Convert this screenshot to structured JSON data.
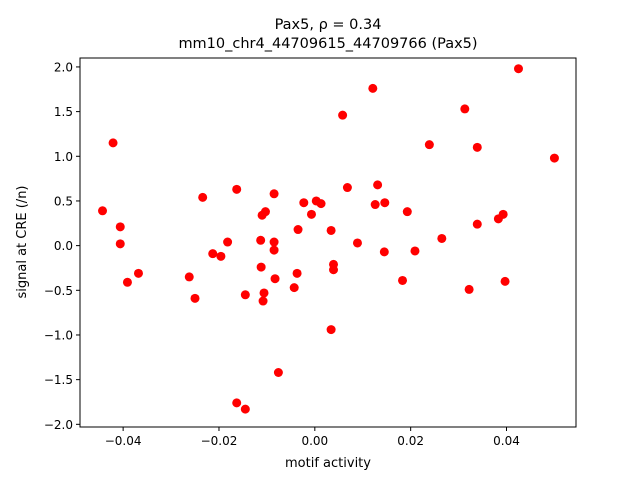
{
  "chart_data": {
    "type": "scatter",
    "title_line1": "Pax5, ρ = 0.34",
    "title_line2": "mm10_chr4_44709615_44709766 (Pax5)",
    "xlabel": "motif activity",
    "ylabel": "signal at CRE (/n)",
    "xlim": [
      -0.049,
      0.0545
    ],
    "ylim": [
      -2.03,
      2.1
    ],
    "xticks": [
      -0.04,
      -0.02,
      0.0,
      0.02,
      0.04
    ],
    "xtick_labels": [
      "−0.04",
      "−0.02",
      "0.00",
      "0.02",
      "0.04"
    ],
    "yticks": [
      -2.0,
      -1.5,
      -1.0,
      -0.5,
      0.0,
      0.5,
      1.0,
      1.5,
      2.0
    ],
    "ytick_labels": [
      "−2.0",
      "−1.5",
      "−1.0",
      "−0.5",
      "0.0",
      "0.5",
      "1.0",
      "1.5",
      "2.0"
    ],
    "grid": false,
    "marker_color": "#ff0000",
    "points": [
      [
        -0.0443,
        0.39
      ],
      [
        -0.0421,
        1.15
      ],
      [
        -0.0406,
        0.21
      ],
      [
        -0.0406,
        0.02
      ],
      [
        -0.0391,
        -0.41
      ],
      [
        -0.0368,
        -0.31
      ],
      [
        -0.0262,
        -0.35
      ],
      [
        -0.025,
        -0.59
      ],
      [
        -0.0234,
        0.54
      ],
      [
        -0.0213,
        -0.09
      ],
      [
        -0.0196,
        -0.12
      ],
      [
        -0.0182,
        0.04
      ],
      [
        -0.0163,
        0.63
      ],
      [
        -0.0163,
        -1.76
      ],
      [
        -0.0145,
        -0.55
      ],
      [
        -0.0145,
        -1.83
      ],
      [
        -0.0113,
        0.06
      ],
      [
        -0.0112,
        -0.24
      ],
      [
        -0.011,
        0.34
      ],
      [
        -0.0108,
        -0.62
      ],
      [
        -0.0106,
        -0.53
      ],
      [
        -0.0103,
        0.38
      ],
      [
        -0.0085,
        0.58
      ],
      [
        -0.0085,
        0.04
      ],
      [
        -0.0085,
        -0.05
      ],
      [
        -0.0083,
        -0.37
      ],
      [
        -0.0076,
        -1.42
      ],
      [
        -0.0043,
        -0.47
      ],
      [
        -0.0037,
        -0.31
      ],
      [
        -0.0035,
        0.18
      ],
      [
        -0.0023,
        0.48
      ],
      [
        -0.0007,
        0.35
      ],
      [
        0.0003,
        0.5
      ],
      [
        0.0013,
        0.47
      ],
      [
        0.0034,
        0.17
      ],
      [
        0.0034,
        -0.94
      ],
      [
        0.0039,
        -0.27
      ],
      [
        0.0039,
        -0.21
      ],
      [
        0.0058,
        1.46
      ],
      [
        0.0068,
        0.65
      ],
      [
        0.0089,
        0.03
      ],
      [
        0.0121,
        1.76
      ],
      [
        0.0126,
        0.46
      ],
      [
        0.0131,
        0.68
      ],
      [
        0.0145,
        -0.07
      ],
      [
        0.0146,
        0.48
      ],
      [
        0.0183,
        -0.39
      ],
      [
        0.0193,
        0.38
      ],
      [
        0.0209,
        -0.06
      ],
      [
        0.0239,
        1.13
      ],
      [
        0.0265,
        0.08
      ],
      [
        0.0313,
        1.53
      ],
      [
        0.0322,
        -0.49
      ],
      [
        0.0339,
        1.1
      ],
      [
        0.0339,
        0.24
      ],
      [
        0.0383,
        0.3
      ],
      [
        0.0393,
        0.35
      ],
      [
        0.0397,
        -0.4
      ],
      [
        0.0425,
        1.98
      ],
      [
        0.05,
        0.98
      ]
    ]
  }
}
